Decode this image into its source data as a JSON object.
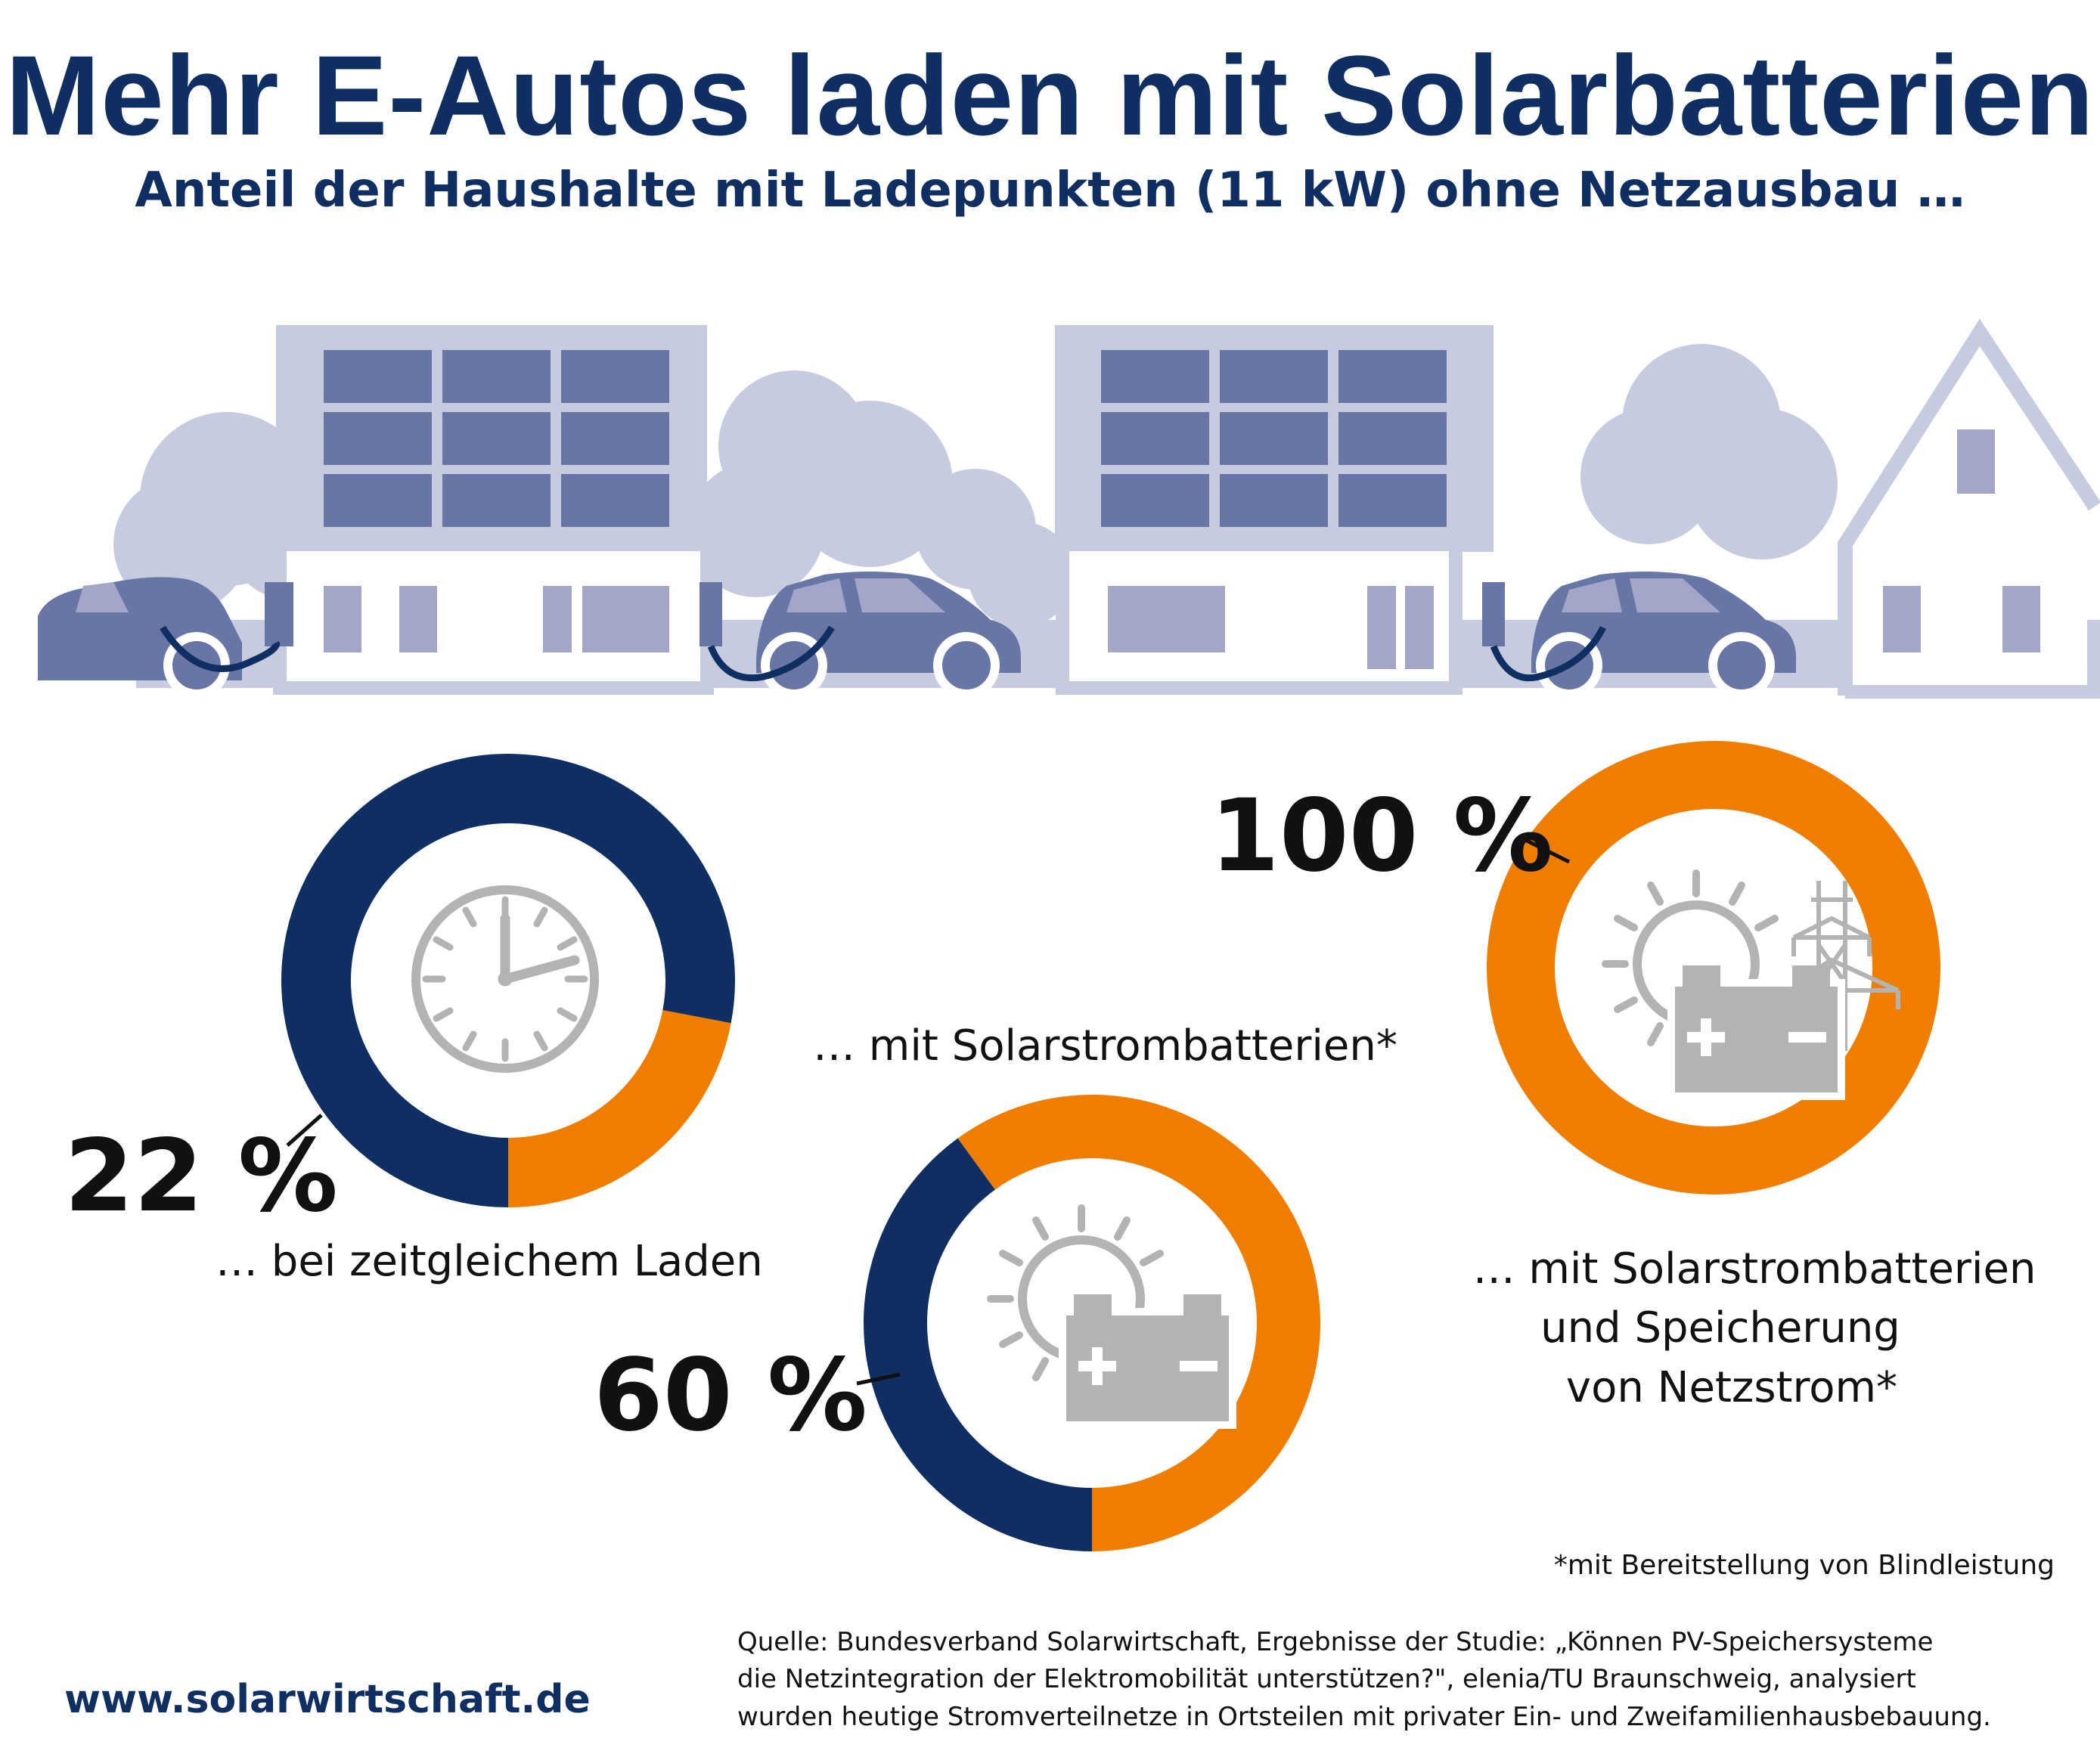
{
  "header": {
    "title": "Mehr E-Autos laden mit Solarbatterien",
    "subtitle": "Anteil der Haushalte mit Ladepunkten (11 kW) ohne Netzausbau …"
  },
  "colors": {
    "navy": "#0f2f62",
    "orange": "#ee7d00",
    "illustration_light": "#c7cbe0",
    "illustration_mid": "#a3a6c8",
    "illustration_dark": "#6876a6",
    "icon_gray": "#b3b3b3"
  },
  "chart_data": [
    {
      "type": "pie",
      "variant": "donut",
      "value_label": "22 %",
      "caption": "… bei zeitgleichem Laden",
      "icon": "clock-icon",
      "slices": [
        {
          "share": 22,
          "color": "#ee7d00"
        },
        {
          "share": 78,
          "color": "#0f2f62"
        }
      ]
    },
    {
      "type": "pie",
      "variant": "donut",
      "value_label": "60 %",
      "caption": "… mit Solarstrombatterien*",
      "icon": "sun-battery-icon",
      "slices": [
        {
          "share": 60,
          "color": "#ee7d00"
        },
        {
          "share": 40,
          "color": "#0f2f62"
        }
      ]
    },
    {
      "type": "pie",
      "variant": "donut",
      "value_label": "100 %",
      "caption_lines": [
        "… mit Solarstrombatterien",
        "und Speicherung",
        "von Netzstrom*"
      ],
      "icon": "sun-battery-pylon-icon",
      "slices": [
        {
          "share": 100,
          "color": "#ee7d00"
        }
      ]
    }
  ],
  "footnote": "*mit Bereitstellung von Blindleistung",
  "source_lines": [
    "Quelle: Bundesverband Solarwirtschaft, Ergebnisse der Studie: „Können PV-Speichersysteme",
    "die Netzintegration der Elektromobilität unterstützen?\", elenia/TU Braunschweig, analysiert",
    "wurden heutige Stromverteilnetze in Ortsteilen mit privater Ein- und Zweifamilienhausbebauung."
  ],
  "website": "www.solarwirtschaft.de"
}
